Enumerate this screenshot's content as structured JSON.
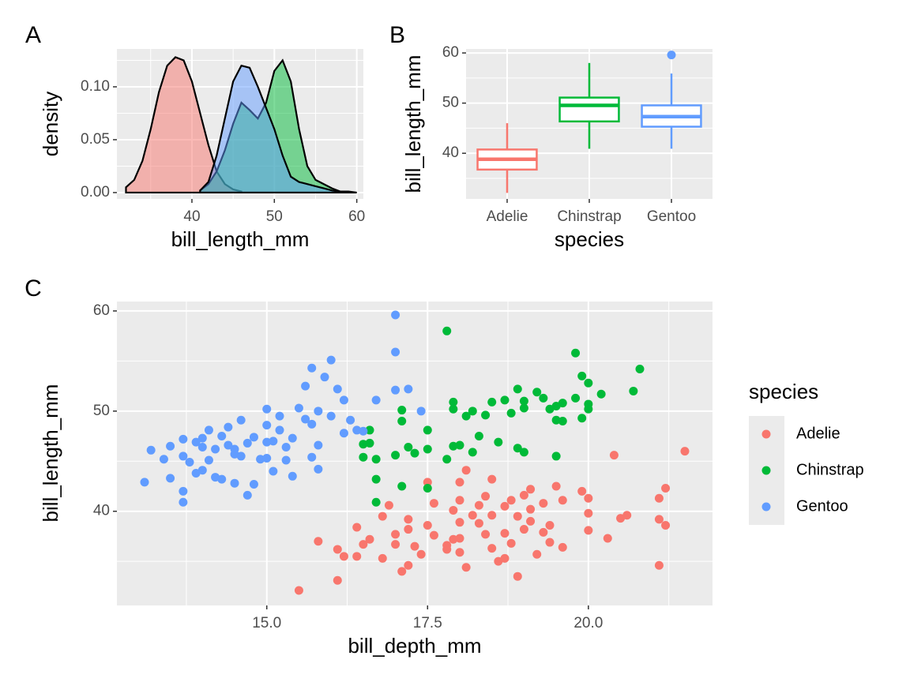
{
  "chart_data": [
    {
      "type": "density",
      "panel_label": "A",
      "x_label": "bill_length_mm",
      "y_label": "density",
      "xlim": [
        30.9,
        60.8
      ],
      "ylim": [
        -0.006,
        0.1358
      ],
      "xticks": [
        40,
        50,
        60
      ],
      "yticks": [
        {
          "value": 0,
          "label": "0.00"
        },
        {
          "value": 0.05,
          "label": "0.05"
        },
        {
          "value": 0.1,
          "label": "0.10"
        }
      ],
      "grid": true,
      "series": [
        {
          "color": "#F8766D",
          "x": [
            32,
            33,
            34,
            35,
            36,
            37,
            38,
            39,
            40,
            41,
            42,
            43,
            44,
            45,
            46
          ],
          "values": [
            0.005,
            0.012,
            0.03,
            0.06,
            0.095,
            0.12,
            0.128,
            0.125,
            0.105,
            0.075,
            0.045,
            0.02,
            0.008,
            0.003,
            0.001
          ]
        },
        {
          "color": "#00BA38",
          "x": [
            41,
            42,
            43,
            44,
            45,
            46,
            47,
            48,
            49,
            50,
            51,
            52,
            53,
            54,
            55,
            56,
            57,
            58
          ],
          "values": [
            0.002,
            0.008,
            0.02,
            0.04,
            0.065,
            0.085,
            0.078,
            0.07,
            0.085,
            0.115,
            0.125,
            0.105,
            0.06,
            0.025,
            0.012,
            0.008,
            0.004,
            0.001
          ]
        },
        {
          "color": "#619CFF",
          "x": [
            41,
            42,
            43,
            44,
            45,
            46,
            47,
            48,
            49,
            50,
            51,
            52,
            53,
            54,
            55,
            56,
            57,
            58,
            59,
            60
          ],
          "values": [
            0.002,
            0.01,
            0.035,
            0.07,
            0.105,
            0.12,
            0.118,
            0.1,
            0.08,
            0.06,
            0.035,
            0.015,
            0.01,
            0.008,
            0.006,
            0.004,
            0.002,
            0.001,
            0.001,
            0
          ]
        }
      ]
    },
    {
      "type": "box",
      "panel_label": "B",
      "x_label": "species",
      "y_label": "bill_length_mm",
      "ylim": [
        30.9,
        60.8
      ],
      "yticks": [
        40,
        50,
        60
      ],
      "grid": true,
      "categories": [
        "Adelie",
        "Chinstrap",
        "Gentoo"
      ],
      "colors": [
        "#F8766D",
        "#00BA38",
        "#619CFF"
      ],
      "min": [
        32.1,
        40.9,
        40.9
      ],
      "q1": [
        36.75,
        46.35,
        45.3
      ],
      "median": [
        38.8,
        49.55,
        47.3
      ],
      "q3": [
        40.75,
        51.1,
        49.55
      ],
      "max": [
        46,
        58,
        55.9
      ],
      "outliers": [
        [],
        [],
        [
          59.6
        ]
      ]
    },
    {
      "type": "scatter",
      "panel_label": "C",
      "x_label": "bill_depth_mm",
      "y_label": "bill_length_mm",
      "xlim": [
        12.67,
        21.93
      ],
      "ylim": [
        30.6,
        60.94
      ],
      "xticks": [
        {
          "value": 15,
          "label": "15.0"
        },
        {
          "value": 17.5,
          "label": "17.5"
        },
        {
          "value": 20,
          "label": "20.0"
        }
      ],
      "yticks": [
        40,
        50,
        60
      ],
      "grid": true,
      "legend_title": "species",
      "legend": "right",
      "series": [
        {
          "name": "Adelie",
          "color": "#F8766D",
          "x": [
            15.5,
            16.1,
            17.1,
            17.2,
            17.4,
            18.1,
            18.6,
            18.9,
            18.7,
            19.2,
            17.8,
            17,
            16.5,
            16.8,
            17.3,
            17.6,
            18,
            18.5,
            18,
            18.3,
            18.7,
            19,
            19.3,
            19.4,
            19.6,
            20,
            19.1,
            18.5,
            18.2,
            17.9,
            17.5,
            17.2,
            17,
            16.8,
            16.6,
            16.4,
            16.9,
            17.6,
            18,
            18.4,
            18.7,
            19.1,
            19.5,
            19.6,
            19.1,
            18.8,
            19.9,
            20,
            20.4,
            21.5,
            21.2,
            21.1,
            21.1,
            21.2,
            20.6,
            20.5,
            20.3,
            21.1,
            20,
            18,
            17.5,
            18.1,
            18.5,
            19,
            16.1,
            16.2,
            15.8,
            17.2,
            17.8,
            18.8,
            19.3,
            18.3,
            16.4,
            18.4,
            18.9,
            17.9,
            18,
            19.4
          ],
          "values": [
            32.1,
            33.1,
            34,
            34.6,
            35.7,
            34.4,
            35,
            33.5,
            35.3,
            35.7,
            36.2,
            36.7,
            36.7,
            35.3,
            36.5,
            37.6,
            37.3,
            36.3,
            38.9,
            38.8,
            37.8,
            38.2,
            37.9,
            36.9,
            36.4,
            38.1,
            39,
            39.6,
            39.6,
            40.1,
            38.6,
            38.2,
            37.7,
            39.5,
            37.2,
            38.4,
            40.6,
            40.8,
            41.1,
            41.5,
            40.5,
            42.2,
            42.5,
            41.1,
            40.2,
            41.1,
            42,
            41.3,
            45.6,
            46,
            42.3,
            41.3,
            39.2,
            38.6,
            39.6,
            39.3,
            37.3,
            34.6,
            39.8,
            42.9,
            42.9,
            44.1,
            43.2,
            41.6,
            36.2,
            35.5,
            37,
            39.2,
            36.6,
            36.8,
            40.8,
            40.6,
            35.5,
            37.7,
            39.5,
            37.2,
            35.9,
            38.6
          ]
        },
        {
          "name": "Chinstrap",
          "color": "#00BA38",
          "x": [
            17.8,
            19.8,
            20.8,
            19.9,
            20,
            19,
            18.9,
            19.2,
            19.6,
            20,
            20.7,
            20.2,
            19.5,
            19.4,
            18.2,
            17.9,
            17.9,
            18.5,
            18.7,
            19,
            19.3,
            19.8,
            18.4,
            18.8,
            19.9,
            20,
            18.1,
            17.1,
            17.1,
            17.5,
            16.6,
            16.5,
            16.6,
            17.2,
            17.5,
            17.9,
            18,
            18.3,
            18.6,
            18.9,
            19,
            19.5,
            17,
            17.3,
            17.8,
            18.2,
            16.5,
            16.7,
            16.7,
            17.1,
            16.7,
            17.5,
            19.6,
            19.5
          ],
          "values": [
            58,
            55.8,
            54.2,
            53.5,
            52.8,
            51,
            52.2,
            51.9,
            50.8,
            50.7,
            52,
            51.7,
            50.5,
            50.2,
            50,
            50.9,
            50.2,
            50.9,
            51.1,
            50.3,
            51.3,
            51.3,
            49.6,
            49.8,
            49.3,
            50.2,
            49.5,
            50.1,
            49,
            48.1,
            48.1,
            46.7,
            46.8,
            46.4,
            46.2,
            46.5,
            46.6,
            47.5,
            46.9,
            46.3,
            45.9,
            45.5,
            45.6,
            45.8,
            45.2,
            45.9,
            45.4,
            45.2,
            43.2,
            42.5,
            40.9,
            42.3,
            49,
            49.1
          ]
        },
        {
          "name": "Gentoo",
          "color": "#619CFF",
          "x": [
            13.2,
            13.4,
            13.5,
            13.7,
            13.7,
            13.8,
            14,
            14,
            14.1,
            14.2,
            14.3,
            14.4,
            14.5,
            14.5,
            14.6,
            14.7,
            14.8,
            14.9,
            15,
            15,
            15,
            15.1,
            15.2,
            15.3,
            15.4,
            15.5,
            15.6,
            15.7,
            15.8,
            15.8,
            16,
            16.1,
            16.2,
            16.3,
            16.4,
            15.7,
            15.9,
            16,
            17,
            17,
            17,
            17.2,
            15.6,
            13.1,
            13.5,
            13.7,
            13.9,
            13.7,
            14.2,
            14.5,
            14.3,
            14.8,
            15.1,
            15.4,
            14.7,
            16.7,
            16.5,
            17.4,
            15.3,
            15.7,
            15.8,
            14.4,
            14.1,
            14.6,
            15.2,
            16.2,
            15,
            14,
            13.9
          ],
          "values": [
            46.1,
            45.2,
            46.5,
            45.5,
            47.2,
            44.9,
            47.3,
            44.1,
            48.1,
            46.2,
            47.5,
            48.4,
            46.2,
            45.7,
            49.1,
            46.8,
            47.4,
            45.2,
            50.2,
            48.6,
            46.9,
            47,
            49.5,
            46.4,
            47.3,
            50.3,
            49.2,
            48.7,
            50,
            46.6,
            49.5,
            52.2,
            51.1,
            49.1,
            48.1,
            54.3,
            53.4,
            55.1,
            59.6,
            55.9,
            52.1,
            52.2,
            52.5,
            42.9,
            43.3,
            42,
            43.8,
            40.9,
            43.4,
            42.8,
            43.2,
            42.7,
            44,
            43.5,
            41.6,
            51.1,
            48,
            50,
            45.1,
            45.4,
            44.2,
            46.6,
            45.1,
            45.5,
            48.1,
            47.8,
            45.3,
            46.4,
            46.9
          ]
        }
      ]
    }
  ]
}
